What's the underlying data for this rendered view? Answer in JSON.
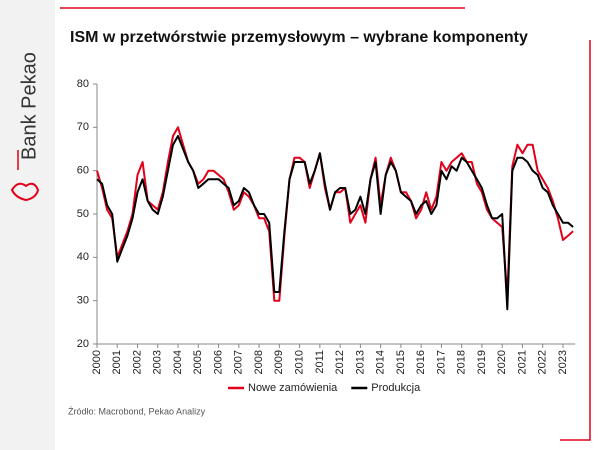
{
  "brand": "Bank Pekao",
  "source": "Źródło: Macrobond, Pekao Analizy",
  "chart_data": {
    "type": "line",
    "title": "ISM w przetwórstwie przemysłowym – wybrane komponenty",
    "x": [
      2000,
      2000.25,
      2000.5,
      2000.75,
      2001,
      2001.25,
      2001.5,
      2001.75,
      2002,
      2002.25,
      2002.5,
      2002.75,
      2003,
      2003.25,
      2003.5,
      2003.75,
      2004,
      2004.25,
      2004.5,
      2004.75,
      2005,
      2005.25,
      2005.5,
      2005.75,
      2006,
      2006.25,
      2006.5,
      2006.75,
      2007,
      2007.25,
      2007.5,
      2007.75,
      2008,
      2008.25,
      2008.5,
      2008.75,
      2009,
      2009.25,
      2009.5,
      2009.75,
      2010,
      2010.25,
      2010.5,
      2010.75,
      2011,
      2011.25,
      2011.5,
      2011.75,
      2012,
      2012.25,
      2012.5,
      2012.75,
      2013,
      2013.25,
      2013.5,
      2013.75,
      2014,
      2014.25,
      2014.5,
      2014.75,
      2015,
      2015.25,
      2015.5,
      2015.75,
      2016,
      2016.25,
      2016.5,
      2016.75,
      2017,
      2017.25,
      2017.5,
      2017.75,
      2018,
      2018.25,
      2018.5,
      2018.75,
      2019,
      2019.25,
      2019.5,
      2019.75,
      2020,
      2020.25,
      2020.5,
      2020.75,
      2021,
      2021.25,
      2021.5,
      2021.75,
      2022,
      2022.25,
      2022.5,
      2022.75,
      2023,
      2023.25,
      2023.5
    ],
    "series": [
      {
        "name": "Nowe zamówienia",
        "color": "#e3001b",
        "values": [
          60,
          56,
          51,
          49,
          40,
          43,
          46,
          50,
          59,
          62,
          53,
          52,
          51,
          55,
          62,
          68,
          70,
          66,
          62,
          60,
          57,
          58,
          60,
          60,
          59,
          58,
          55,
          51,
          52,
          55,
          54,
          52,
          49,
          49,
          46,
          30,
          30,
          45,
          58,
          63,
          63,
          62,
          56,
          60,
          64,
          56,
          51,
          55,
          55,
          56,
          48,
          50,
          52,
          48,
          58,
          63,
          52,
          59,
          63,
          60,
          55,
          55,
          53,
          49,
          51,
          55,
          51,
          54,
          62,
          60,
          62,
          63,
          64,
          62,
          62,
          57,
          55,
          51,
          49,
          48,
          47,
          31,
          61,
          66,
          64,
          66,
          66,
          60,
          58,
          56,
          53,
          49,
          44,
          45,
          46
        ]
      },
      {
        "name": "Produkcja",
        "color": "#000000",
        "values": [
          58,
          57,
          52,
          50,
          39,
          42,
          45,
          49,
          55,
          58,
          53,
          51,
          50,
          54,
          60,
          66,
          68,
          65,
          62,
          60,
          56,
          57,
          58,
          58,
          58,
          57,
          56,
          52,
          53,
          56,
          55,
          52,
          50,
          50,
          48,
          32,
          32,
          46,
          58,
          62,
          62,
          62,
          57,
          60,
          64,
          57,
          51,
          55,
          56,
          56,
          50,
          51,
          54,
          50,
          58,
          62,
          50,
          59,
          62,
          60,
          55,
          54,
          53,
          50,
          52,
          53,
          50,
          52,
          60,
          58,
          61,
          60,
          63,
          62,
          60,
          58,
          56,
          52,
          49,
          49,
          50,
          28,
          60,
          63,
          63,
          62,
          60,
          59,
          56,
          55,
          52,
          50,
          48,
          48,
          47
        ]
      }
    ],
    "xlim": [
      2000,
      2023.6
    ],
    "xticks": [
      2000,
      2001,
      2002,
      2003,
      2004,
      2005,
      2006,
      2007,
      2008,
      2009,
      2010,
      2011,
      2012,
      2013,
      2014,
      2015,
      2016,
      2017,
      2018,
      2019,
      2020,
      2021,
      2022,
      2023
    ],
    "ylim": [
      20,
      80
    ],
    "yticks": [
      20,
      30,
      40,
      50,
      60,
      70,
      80
    ]
  }
}
